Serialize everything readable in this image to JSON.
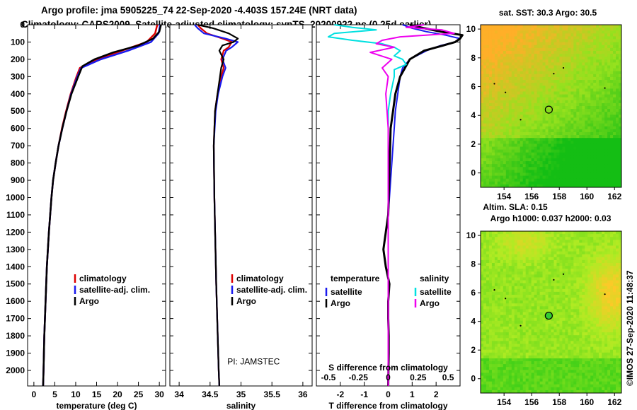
{
  "header": {
    "title_line1": "Argo profile: jma 5905225_74 22-Sep-2020 -4.403S 157.24E (NRT data)",
    "title_line2": "Climatology: CARS2009. Satellite-adjusted climatology: synTS_20200922.nc (0.25d earlier)"
  },
  "colors": {
    "climatology": "#dd0000",
    "satellite": "#1a1aee",
    "argo": "#000000",
    "salinity_sat": "#00e0e0",
    "salinity_argo": "#ee00ee"
  },
  "chart_data": [
    {
      "type": "line",
      "title": "",
      "xlabel": "temperature (deg C)",
      "ylabel": "",
      "xlim": [
        -1.5,
        31.5
      ],
      "ylim": [
        2090,
        0
      ],
      "xticks": [
        0,
        5,
        10,
        15,
        20,
        25,
        30
      ],
      "xtick_labels": [
        "0",
        "5",
        "10",
        "15",
        "20",
        "25",
        "30"
      ],
      "yticks": [
        0,
        100,
        200,
        300,
        400,
        500,
        600,
        700,
        800,
        900,
        1000,
        1100,
        1200,
        1300,
        1400,
        1500,
        1600,
        1700,
        1800,
        1900,
        2000
      ],
      "ytick_labels": [
        "0",
        "100",
        "200",
        "300",
        "400",
        "500",
        "600",
        "700",
        "800",
        "900",
        "1000",
        "1100",
        "1200",
        "1300",
        "1400",
        "1500",
        "1600",
        "1700",
        "1800",
        "1900",
        "2000"
      ],
      "series": [
        {
          "name": "climatology",
          "y": [
            0,
            50,
            100,
            150,
            200,
            250,
            300,
            400,
            500,
            600,
            700,
            800,
            900,
            1000,
            1200,
            1400,
            1600,
            1800,
            2000,
            2090
          ],
          "x": [
            29.5,
            29.0,
            27.0,
            21.0,
            15.0,
            11.0,
            10.2,
            8.8,
            7.7,
            6.7,
            5.9,
            5.2,
            4.6,
            4.2,
            3.6,
            3.1,
            2.8,
            2.5,
            2.3,
            2.2
          ]
        },
        {
          "name": "satellite-adj. clim.",
          "y": [
            0,
            50,
            100,
            150,
            200,
            250,
            300,
            400,
            500,
            600,
            700,
            800,
            900,
            1000,
            1200,
            1400,
            1600,
            1800,
            2000,
            2090
          ],
          "x": [
            30.2,
            29.8,
            28.0,
            22.5,
            16.0,
            11.3,
            10.4,
            8.9,
            7.8,
            6.8,
            5.9,
            5.2,
            4.6,
            4.2,
            3.6,
            3.1,
            2.8,
            2.5,
            2.3,
            2.2
          ]
        },
        {
          "name": "Argo",
          "y": [
            0,
            40,
            80,
            120,
            160,
            200,
            240,
            300,
            400,
            500,
            600,
            700,
            800,
            900,
            1000,
            1200,
            1400,
            1600,
            1800,
            2000,
            2090
          ],
          "x": [
            30.4,
            30.0,
            28.5,
            25.0,
            19.0,
            14.5,
            11.6,
            10.6,
            9.0,
            7.8,
            6.8,
            5.9,
            5.2,
            4.6,
            4.2,
            3.6,
            3.1,
            2.8,
            2.5,
            2.3,
            2.2
          ]
        }
      ],
      "legend": {
        "position": "lower-right",
        "entries": [
          "climatology",
          "satellite-adj. clim.",
          "Argo"
        ]
      }
    },
    {
      "type": "line",
      "title": "",
      "xlabel": "salinity",
      "ylabel": "",
      "xlim": [
        33.85,
        36.15
      ],
      "ylim": [
        2090,
        0
      ],
      "xticks": [
        34,
        34.5,
        35,
        35.5,
        36
      ],
      "xtick_labels": [
        "34",
        "34.5",
        "35",
        "35.5",
        "36"
      ],
      "series": [
        {
          "name": "climatology",
          "y": [
            0,
            20,
            50,
            80,
            100,
            130,
            150,
            200,
            250,
            300,
            400,
            500,
            700,
            1000,
            1500,
            2000,
            2090
          ],
          "x": [
            34.3,
            34.35,
            34.45,
            34.7,
            34.85,
            34.8,
            34.72,
            34.68,
            34.72,
            34.68,
            34.62,
            34.58,
            34.56,
            34.57,
            34.6,
            34.64,
            34.65
          ]
        },
        {
          "name": "satellite-adj. clim.",
          "y": [
            0,
            20,
            50,
            80,
            100,
            130,
            150,
            200,
            250,
            300,
            400,
            500,
            700,
            1000,
            1500,
            2000,
            2090
          ],
          "x": [
            34.25,
            34.3,
            34.4,
            34.75,
            34.95,
            34.85,
            34.76,
            34.7,
            34.75,
            34.7,
            34.63,
            34.59,
            34.56,
            34.57,
            34.6,
            34.64,
            34.65
          ]
        },
        {
          "name": "Argo",
          "y": [
            0,
            20,
            50,
            80,
            100,
            120,
            150,
            200,
            250,
            300,
            400,
            500,
            700,
            1000,
            1500,
            2000,
            2090
          ],
          "x": [
            34.3,
            34.55,
            34.8,
            34.95,
            34.88,
            34.7,
            34.65,
            34.72,
            34.68,
            34.66,
            34.62,
            34.58,
            34.56,
            34.57,
            34.6,
            34.64,
            34.65
          ]
        }
      ],
      "legend": {
        "position": "lower-right",
        "entries": [
          "climatology",
          "satellite-adj. clim.",
          "Argo"
        ]
      },
      "annotation": "PI: JAMSTEC"
    },
    {
      "type": "line",
      "title": "",
      "xlabel": "T difference from climatology",
      "xlabel2": "S difference from climatology",
      "xlim": [
        -3,
        3
      ],
      "ylim": [
        2090,
        0
      ],
      "xticks": [
        -2,
        -1,
        0,
        1,
        2
      ],
      "xtick_labels": [
        "-2",
        "-1",
        "0",
        "1",
        "2"
      ],
      "xticks2": [
        -0.5,
        -0.25,
        0,
        0.25,
        0.5
      ],
      "xtick2_labels": [
        "-0.5",
        "-0.25",
        "0",
        "0.25",
        "0.5"
      ],
      "series": [
        {
          "name": "temperature satellite",
          "y": [
            0,
            20,
            40,
            60,
            80,
            100,
            120,
            150,
            200,
            250,
            300,
            400,
            500,
            600,
            700,
            800,
            900,
            1000,
            1100
          ],
          "x": [
            0.6,
            1.0,
            1.6,
            2.4,
            3.0,
            2.8,
            2.2,
            1.6,
            0.9,
            0.6,
            0.5,
            0.4,
            0.3,
            0.25,
            0.2,
            0.15,
            0.1,
            0.05,
            0.0
          ]
        },
        {
          "name": "temperature Argo",
          "y": [
            0,
            20,
            40,
            60,
            80,
            100,
            120,
            150,
            200,
            250,
            300,
            400,
            500,
            600,
            1100,
            1200,
            1300,
            1400,
            1500,
            1600,
            1700,
            1800,
            1900,
            2000,
            2090
          ],
          "x": [
            0.9,
            1.5,
            2.2,
            3.1,
            3.0,
            2.8,
            2.3,
            1.5,
            0.9,
            0.7,
            0.5,
            0.3,
            0.2,
            0.1,
            0.0,
            -0.1,
            -0.2,
            -0.1,
            0.05,
            0.0,
            0.0,
            0.02,
            0.02,
            0.01,
            0.0
          ]
        },
        {
          "name": "salinity satellite",
          "y": [
            0,
            15,
            30,
            50,
            70,
            90,
            110,
            130,
            150,
            180,
            200,
            230,
            260,
            300,
            400,
            500,
            700,
            900
          ],
          "x": [
            -0.45,
            -0.3,
            -0.1,
            -0.45,
            -0.5,
            -0.3,
            -0.05,
            0.05,
            0.1,
            0.05,
            0.12,
            0.15,
            0.05,
            0.05,
            0.02,
            0.0,
            0.0,
            0.0
          ]
        },
        {
          "name": "salinity Argo",
          "y": [
            0,
            15,
            30,
            50,
            70,
            90,
            110,
            130,
            160,
            200,
            250,
            300,
            400,
            600,
            1000,
            1500,
            2000,
            2090
          ],
          "x": [
            0.3,
            0.15,
            0.45,
            0.55,
            0.1,
            -0.05,
            -0.1,
            0.05,
            -0.15,
            0.03,
            -0.05,
            0.0,
            -0.02,
            0.0,
            0.0,
            0.0,
            0.0,
            0.0
          ]
        }
      ],
      "legend": {
        "position": "lower",
        "left_title": "temperature",
        "right_title": "salinity",
        "entries": [
          "satellite",
          "Argo"
        ]
      }
    },
    {
      "type": "heatmap",
      "title": "sat. SST: 30.3 Argo: 30.5",
      "xlim": [
        152.3,
        162.5
      ],
      "ylim": [
        -1,
        10.3
      ],
      "xticks": [
        154,
        156,
        158,
        160,
        162
      ],
      "xtick_labels": [
        "154",
        "156",
        "158",
        "160",
        "162"
      ],
      "yticks": [
        0,
        2,
        4,
        6,
        8,
        10
      ],
      "ytick_labels": [
        "0",
        "2",
        "4",
        "6",
        "8",
        "10"
      ],
      "profile_location": [
        157.24,
        4.4
      ]
    },
    {
      "type": "heatmap",
      "title": "Altim. SLA: 0.15",
      "subtitle": "Argo h1000: 0.037 h2000: 0.03",
      "xlim": [
        152.3,
        162.5
      ],
      "ylim": [
        -1,
        10.3
      ],
      "xticks": [
        154,
        156,
        158,
        160,
        162
      ],
      "xtick_labels": [
        "154",
        "156",
        "158",
        "160",
        "162"
      ],
      "yticks": [
        0,
        2,
        4,
        6,
        8,
        10
      ],
      "ytick_labels": [
        "0",
        "2",
        "4",
        "6",
        "8",
        "10"
      ],
      "profile_location": [
        157.24,
        4.4
      ]
    }
  ],
  "footer": {
    "stamp": "©IMOS 27-Sep-2020 11:48:37"
  }
}
